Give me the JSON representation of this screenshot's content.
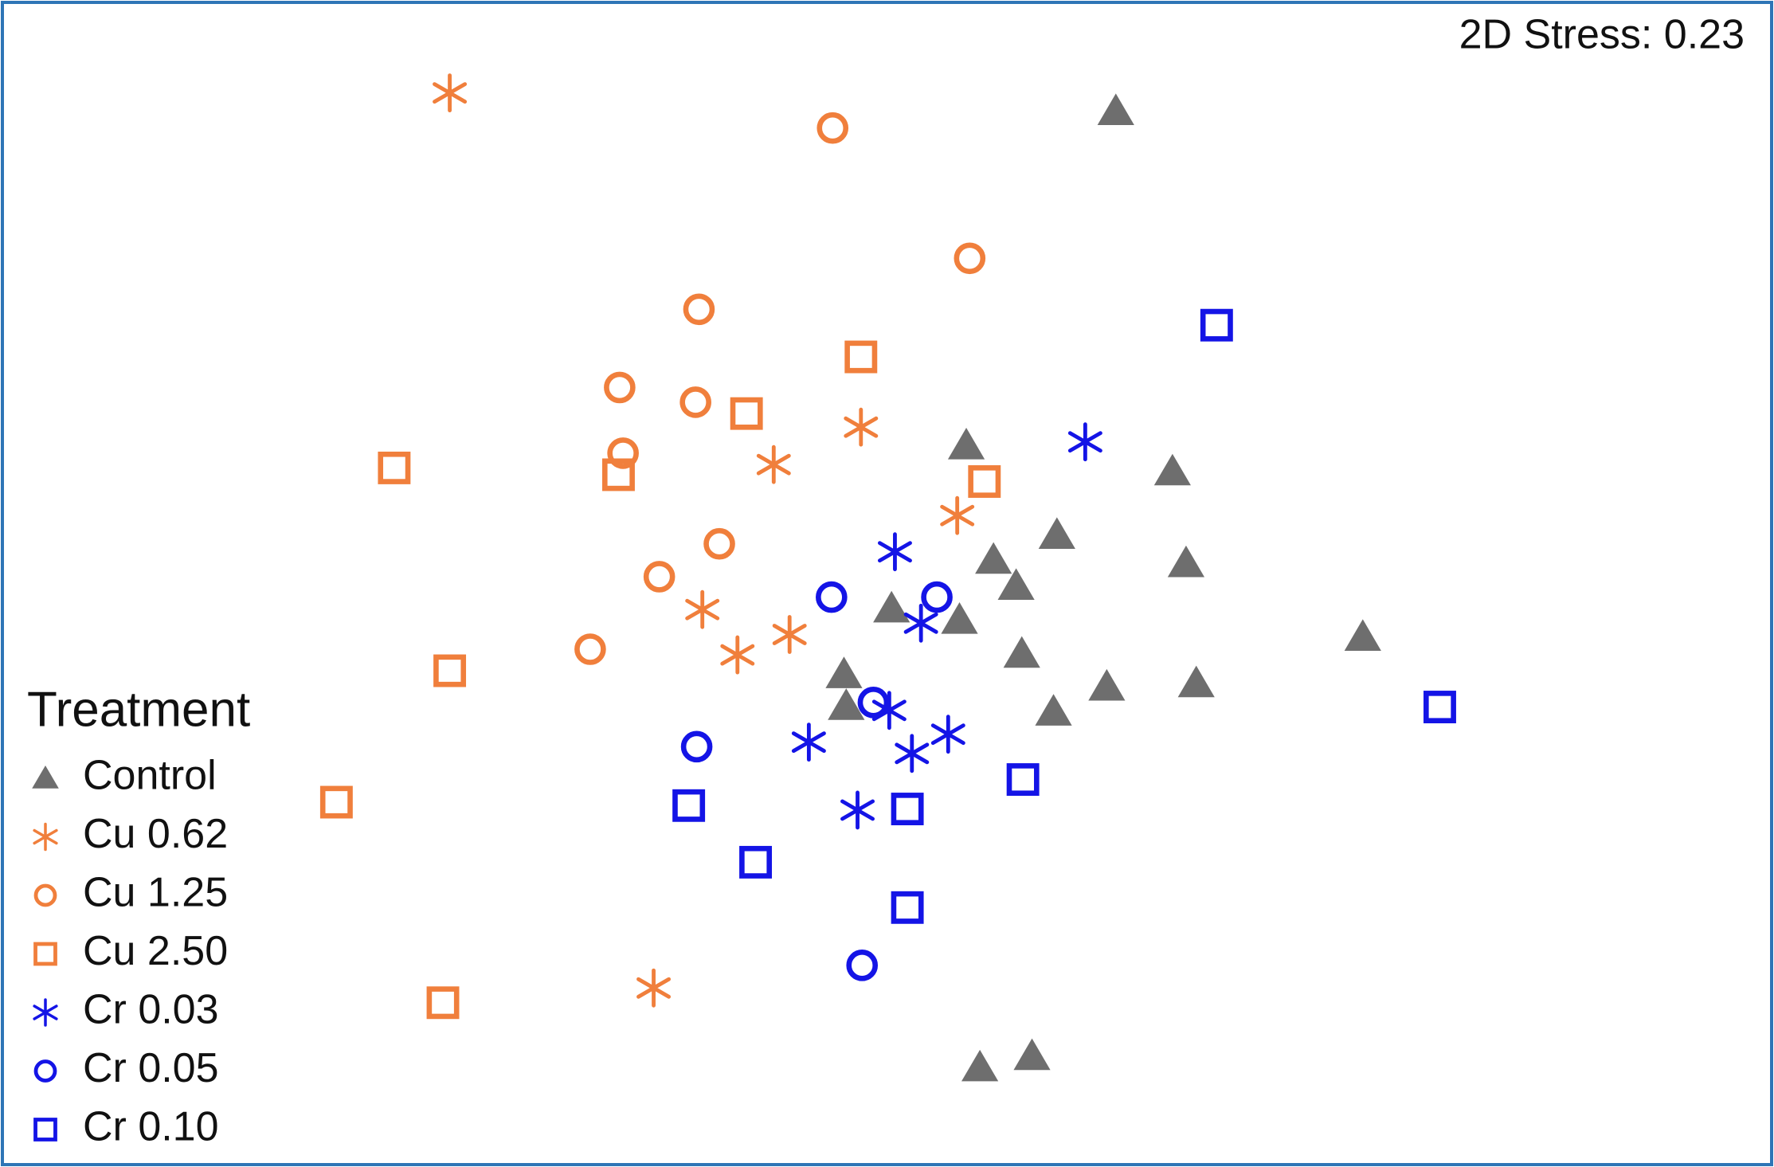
{
  "chart_data": {
    "type": "scatter",
    "annotation": "2D Stress: 0.23",
    "legend_title": "Treatment",
    "legend": "bottom-left",
    "xlim": [
      0,
      1566
    ],
    "ylim": [
      0,
      1030
    ],
    "series": [
      {
        "name": "Control",
        "color": "#6e6e6e",
        "marker": "triangle",
        "x": [
          985,
          853,
          1035,
          933,
          877,
          1047,
          897,
          787,
          847,
          1203,
          902,
          977,
          1056,
          745,
          930,
          747,
          865,
          911
        ],
        "values": [
          932,
          637,
          614,
          558,
          536,
          533,
          513,
          493,
          483,
          468,
          453,
          424,
          427,
          435,
          402,
          407,
          88,
          98
        ]
      },
      {
        "name": "Cu 0.62",
        "color": "#f07f3c",
        "marker": "asterisk",
        "x": [
          397,
          760,
          683,
          845,
          620,
          697,
          651,
          577
        ],
        "values": [
          948,
          653,
          620,
          575,
          492,
          470,
          452,
          158
        ]
      },
      {
        "name": "Cu 1.25",
        "color": "#f07f3c",
        "marker": "circle",
        "x": [
          735,
          856,
          617,
          547,
          614,
          550,
          635,
          582,
          521
        ],
        "values": [
          917,
          802,
          757,
          688,
          675,
          630,
          550,
          521,
          457
        ]
      },
      {
        "name": "Cu 2.50",
        "color": "#f07f3c",
        "marker": "square",
        "x": [
          760,
          659,
          348,
          546,
          869,
          397,
          297,
          391
        ],
        "values": [
          715,
          665,
          617,
          611,
          605,
          438,
          322,
          145
        ]
      },
      {
        "name": "Cr 0.03",
        "color": "#1414e6",
        "marker": "asterisk",
        "x": [
          958,
          790,
          813,
          785,
          714,
          837,
          805,
          757
        ],
        "values": [
          640,
          543,
          480,
          403,
          375,
          382,
          365,
          315
        ]
      },
      {
        "name": "Cr 0.05",
        "color": "#1414e6",
        "marker": "circle",
        "x": [
          734,
          827,
          771,
          615,
          761
        ],
        "values": [
          503,
          503,
          410,
          371,
          178
        ]
      },
      {
        "name": "Cr 0.10",
        "color": "#1414e6",
        "marker": "square",
        "x": [
          1074,
          1271,
          903,
          608,
          801,
          667,
          801
        ],
        "values": [
          743,
          406,
          342,
          319,
          316,
          269,
          229
        ]
      }
    ]
  }
}
